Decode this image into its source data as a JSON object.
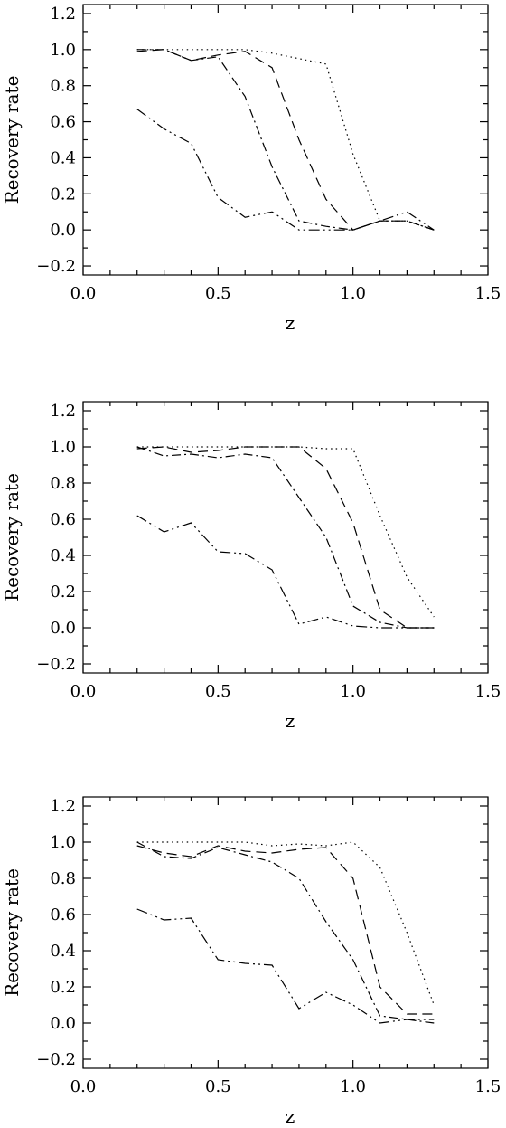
{
  "chart_data": [
    {
      "type": "line",
      "xlabel": "z",
      "ylabel": "Recovery  rate",
      "xlim": [
        0.0,
        1.5
      ],
      "ylim": [
        -0.25,
        1.25
      ],
      "xticks": [
        "0.0",
        "0.5",
        "1.0",
        "1.5"
      ],
      "yticks": [
        "−0.2",
        "0.0",
        "0.2",
        "0.4",
        "0.6",
        "0.8",
        "1.0",
        "1.2"
      ],
      "grid": false,
      "x": [
        0.2,
        0.3,
        0.4,
        0.5,
        0.6,
        0.7,
        0.8,
        0.9,
        1.0,
        1.1,
        1.2,
        1.3
      ],
      "series": [
        {
          "style": "dotted",
          "values": [
            1.0,
            1.0,
            1.0,
            1.0,
            1.0,
            0.98,
            0.95,
            0.92,
            0.42,
            0.05,
            0.05,
            0.0
          ]
        },
        {
          "style": "dashed",
          "values": [
            0.99,
            1.0,
            0.94,
            0.97,
            0.99,
            0.9,
            0.5,
            0.17,
            0.0,
            0.05,
            0.05,
            0.0
          ]
        },
        {
          "style": "dash-dot",
          "values": [
            1.0,
            1.0,
            0.94,
            0.96,
            0.74,
            0.35,
            0.05,
            0.02,
            0.0,
            0.05,
            0.05,
            0.0
          ]
        },
        {
          "style": "dash-dot-dot",
          "values": [
            0.67,
            0.56,
            0.48,
            0.18,
            0.07,
            0.1,
            0.0,
            0.0,
            0.0,
            0.05,
            0.1,
            0.0
          ]
        }
      ]
    },
    {
      "type": "line",
      "xlabel": "z",
      "ylabel": "Recovery  rate",
      "xlim": [
        0.0,
        1.5
      ],
      "ylim": [
        -0.25,
        1.25
      ],
      "xticks": [
        "0.0",
        "0.5",
        "1.0",
        "1.5"
      ],
      "yticks": [
        "−0.2",
        "0.0",
        "0.2",
        "0.4",
        "0.6",
        "0.8",
        "1.0",
        "1.2"
      ],
      "grid": false,
      "x": [
        0.2,
        0.3,
        0.4,
        0.5,
        0.6,
        0.7,
        0.8,
        0.9,
        1.0,
        1.1,
        1.2,
        1.3
      ],
      "series": [
        {
          "style": "dotted",
          "values": [
            1.0,
            1.0,
            1.0,
            1.0,
            1.0,
            1.0,
            1.0,
            0.99,
            0.99,
            0.62,
            0.28,
            0.06
          ]
        },
        {
          "style": "dashed",
          "values": [
            0.99,
            1.0,
            0.97,
            0.98,
            1.0,
            1.0,
            1.0,
            0.88,
            0.58,
            0.1,
            0.0,
            0.0
          ]
        },
        {
          "style": "dash-dot",
          "values": [
            1.0,
            0.95,
            0.96,
            0.94,
            0.96,
            0.94,
            0.72,
            0.5,
            0.12,
            0.03,
            0.0,
            0.0
          ]
        },
        {
          "style": "dash-dot-dot",
          "values": [
            0.62,
            0.53,
            0.58,
            0.42,
            0.41,
            0.32,
            0.02,
            0.06,
            0.01,
            0.0,
            0.0,
            0.0
          ]
        }
      ]
    },
    {
      "type": "line",
      "xlabel": "z",
      "ylabel": "Recovery  rate",
      "xlim": [
        0.0,
        1.5
      ],
      "ylim": [
        -0.25,
        1.25
      ],
      "xticks": [
        "0.0",
        "0.5",
        "1.0",
        "1.5"
      ],
      "yticks": [
        "−0.2",
        "0.0",
        "0.2",
        "0.4",
        "0.6",
        "0.8",
        "1.0",
        "1.2"
      ],
      "grid": false,
      "x": [
        0.2,
        0.3,
        0.4,
        0.5,
        0.6,
        0.7,
        0.8,
        0.9,
        1.0,
        1.1,
        1.2,
        1.3
      ],
      "series": [
        {
          "style": "dotted",
          "values": [
            1.0,
            1.0,
            1.0,
            1.0,
            1.0,
            0.98,
            0.99,
            0.98,
            1.0,
            0.86,
            0.5,
            0.1
          ]
        },
        {
          "style": "dashed",
          "values": [
            0.98,
            0.94,
            0.92,
            0.98,
            0.95,
            0.94,
            0.96,
            0.97,
            0.8,
            0.2,
            0.05,
            0.05
          ]
        },
        {
          "style": "dash-dot",
          "values": [
            1.0,
            0.92,
            0.91,
            0.97,
            0.93,
            0.89,
            0.8,
            0.56,
            0.35,
            0.04,
            0.02,
            0.0
          ]
        },
        {
          "style": "dash-dot-dot",
          "values": [
            0.63,
            0.57,
            0.58,
            0.35,
            0.33,
            0.32,
            0.08,
            0.17,
            0.1,
            0.0,
            0.02,
            0.02
          ]
        }
      ]
    }
  ]
}
